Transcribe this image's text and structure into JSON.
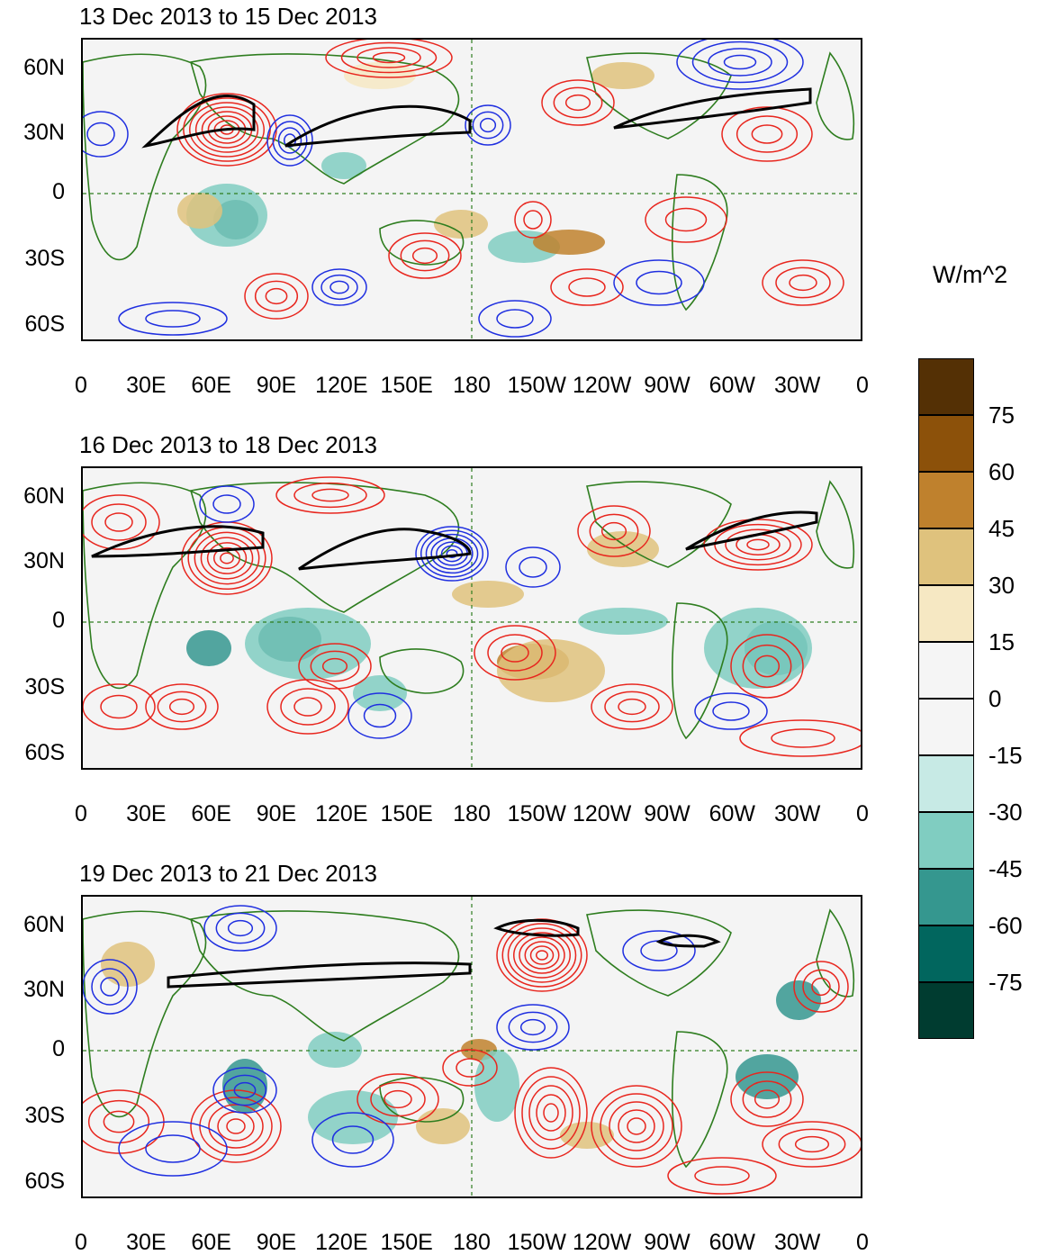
{
  "panels": [
    {
      "title": "13 Dec 2013 to 15 Dec 2013"
    },
    {
      "title": "16 Dec 2013 to 18 Dec 2013"
    },
    {
      "title": "19 Dec 2013 to 21 Dec 2013"
    }
  ],
  "axes": {
    "lat_labels": [
      "60N",
      "30N",
      "0",
      "30S",
      "60S"
    ],
    "lon_labels": [
      "0",
      "30E",
      "60E",
      "90E",
      "120E",
      "150E",
      "180",
      "150W",
      "120W",
      "90W",
      "60W",
      "30W",
      "0"
    ]
  },
  "colorbar": {
    "units": "W/m^2",
    "labels": [
      "75",
      "60",
      "45",
      "30",
      "15",
      "0",
      "-15",
      "-30",
      "-45",
      "-60",
      "-75"
    ],
    "colors": [
      "#543005",
      "#8c510a",
      "#bf812d",
      "#dfc27d",
      "#f6e8c3",
      "#f5f5f5",
      "#f5f5f5",
      "#c7eae5",
      "#80cdc1",
      "#35978f",
      "#01665e",
      "#003c30"
    ]
  },
  "map_colors": {
    "coast": "#2e7d1f",
    "positive_contour": "#e8261e",
    "negative_contour": "#1f2fe0",
    "jet_contour": "#000000"
  }
}
